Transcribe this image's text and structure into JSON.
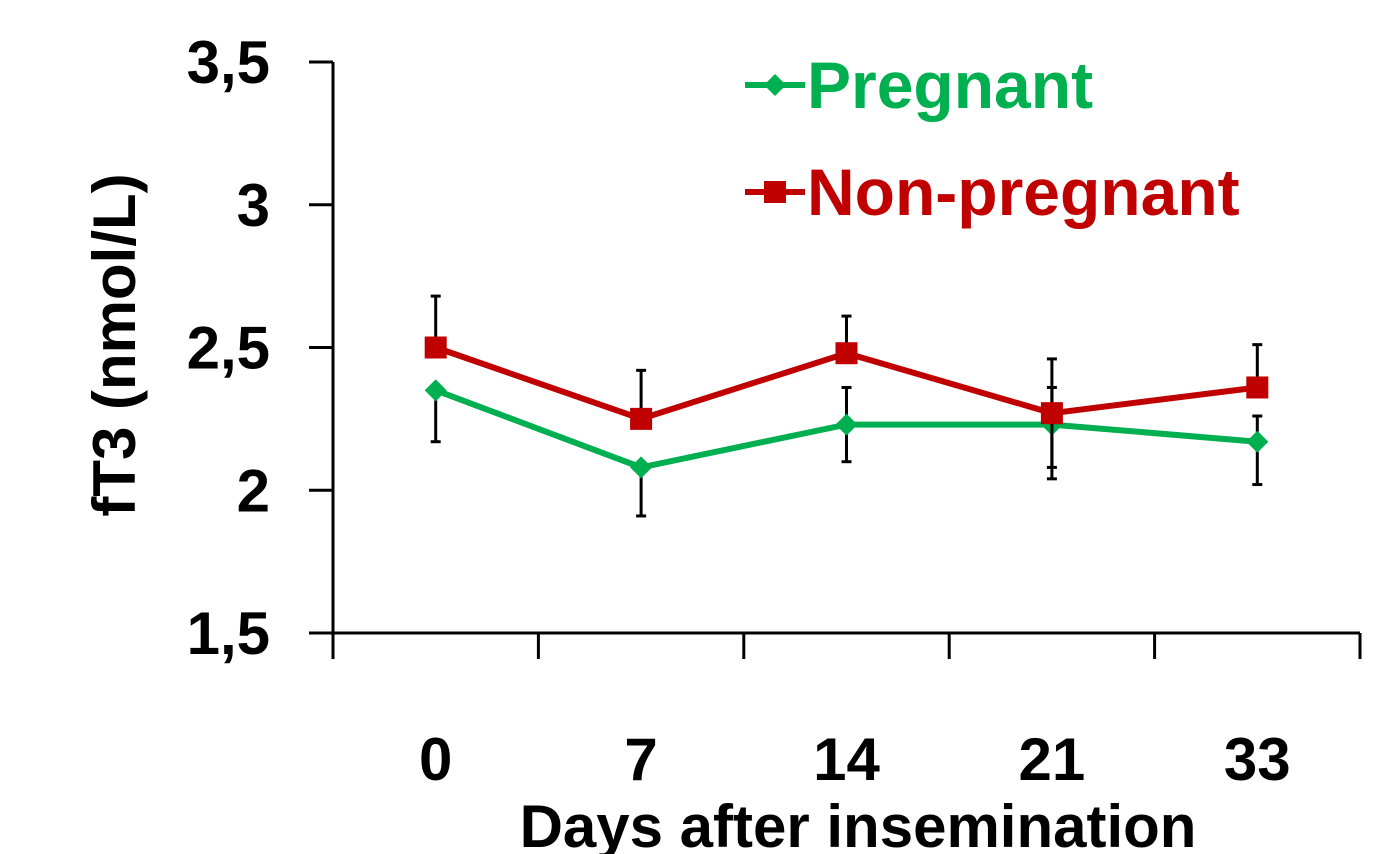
{
  "chart_data": {
    "type": "line",
    "xlabel": "Days after insemination",
    "ylabel": "fT3 (nmol/L)",
    "categories": [
      "0",
      "7",
      "14",
      "21",
      "33"
    ],
    "ylim": [
      1.5,
      3.5
    ],
    "y_ticks": [
      "1,5",
      "2",
      "2,5",
      "3",
      "3,5"
    ],
    "y_tick_values": [
      1.5,
      2.0,
      2.5,
      3.0,
      3.5
    ],
    "grid": false,
    "legend_position": "top-right",
    "series": [
      {
        "name": "Pregnant",
        "color": "#00b050",
        "marker": "diamond",
        "values": [
          2.35,
          2.08,
          2.23,
          2.23,
          2.17
        ],
        "error_low": [
          2.17,
          1.91,
          2.1,
          2.04,
          2.02
        ],
        "error_high": [
          2.35,
          2.08,
          2.36,
          2.36,
          2.26
        ]
      },
      {
        "name": "Non-pregnant",
        "color": "#c00000",
        "marker": "square",
        "values": [
          2.5,
          2.25,
          2.48,
          2.27,
          2.36
        ],
        "error_low": [
          2.5,
          2.25,
          2.48,
          2.08,
          2.36
        ],
        "error_high": [
          2.68,
          2.42,
          2.61,
          2.46,
          2.51
        ]
      }
    ]
  }
}
